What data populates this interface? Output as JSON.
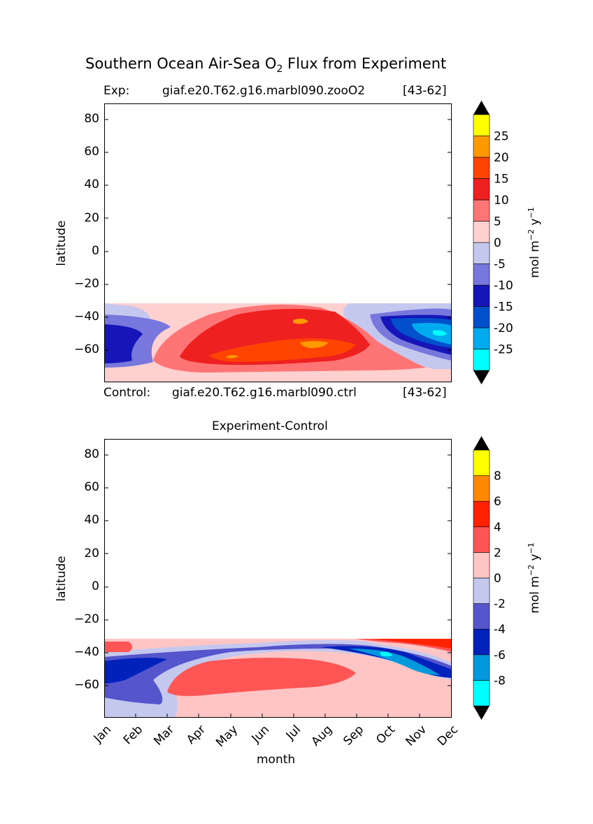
{
  "figure": {
    "title_main": "Southern Ocean Air-Sea O",
    "title_sub": "2",
    "title_rest": " Flux from Experiment"
  },
  "chart_data": [
    {
      "type": "heatmap",
      "exp_label": "Exp:",
      "exp_name": "giaf.e20.T62.g16.marbl090.zooO2",
      "exp_years": "[43-62]",
      "ctrl_label": "Control:",
      "ctrl_name": "giaf.e20.T62.g16.marbl090.ctrl",
      "ctrl_years": "[43-62]",
      "ylabel": "latitude",
      "ylim": [
        -79,
        90
      ],
      "xlim": [
        0,
        11
      ],
      "yticks": [
        "80",
        "60",
        "40",
        "20",
        "0",
        "−20",
        "−40",
        "−60"
      ],
      "colorbar": {
        "label_main": "mol m",
        "label_exp1": "−2",
        "label_mid": " y",
        "label_exp2": "−1",
        "levels": [
          -30,
          -25,
          -20,
          -15,
          -10,
          -5,
          0,
          5,
          10,
          15,
          20,
          25,
          30
        ],
        "colors": [
          "#00ffff",
          "#00aaee",
          "#0050cc",
          "#1515b8",
          "#7777dd",
          "#c5c8ee",
          "#ffd0d0",
          "#ff7575",
          "#ee2020",
          "#ff4400",
          "#ff9900",
          "#ffff00"
        ],
        "under_color": "#000000",
        "over_color": "#000000",
        "tick_labels": [
          "-25",
          "-20",
          "-15",
          "-10",
          "-5",
          "0",
          "5",
          "10",
          "15",
          "20",
          "25"
        ]
      }
    },
    {
      "type": "heatmap",
      "title": "Experiment-Control",
      "ylabel": "latitude",
      "xlabel": "month",
      "ylim": [
        -79,
        90
      ],
      "xlim": [
        0,
        11
      ],
      "yticks": [
        "80",
        "60",
        "40",
        "20",
        "0",
        "−20",
        "−40",
        "−60"
      ],
      "xticks": [
        "Jan",
        "Feb",
        "Mar",
        "Apr",
        "May",
        "Jun",
        "Jul",
        "Aug",
        "Sep",
        "Oct",
        "Nov",
        "Dec"
      ],
      "colorbar": {
        "label_main": "mol m",
        "label_exp1": "−2",
        "label_mid": " y",
        "label_exp2": "−1",
        "levels": [
          -10,
          -8,
          -6,
          -4,
          -2,
          0,
          2,
          4,
          6,
          8,
          10
        ],
        "colors": [
          "#00ffff",
          "#0099dd",
          "#0022bb",
          "#5555cc",
          "#c5c8ee",
          "#ffc5c5",
          "#ff5555",
          "#ff2200",
          "#ff8800",
          "#ffff00"
        ],
        "under_color": "#000000",
        "over_color": "#000000",
        "tick_labels": [
          "-8",
          "-6",
          "-4",
          "-2",
          "0",
          "2",
          "4",
          "6",
          "8"
        ]
      }
    }
  ]
}
